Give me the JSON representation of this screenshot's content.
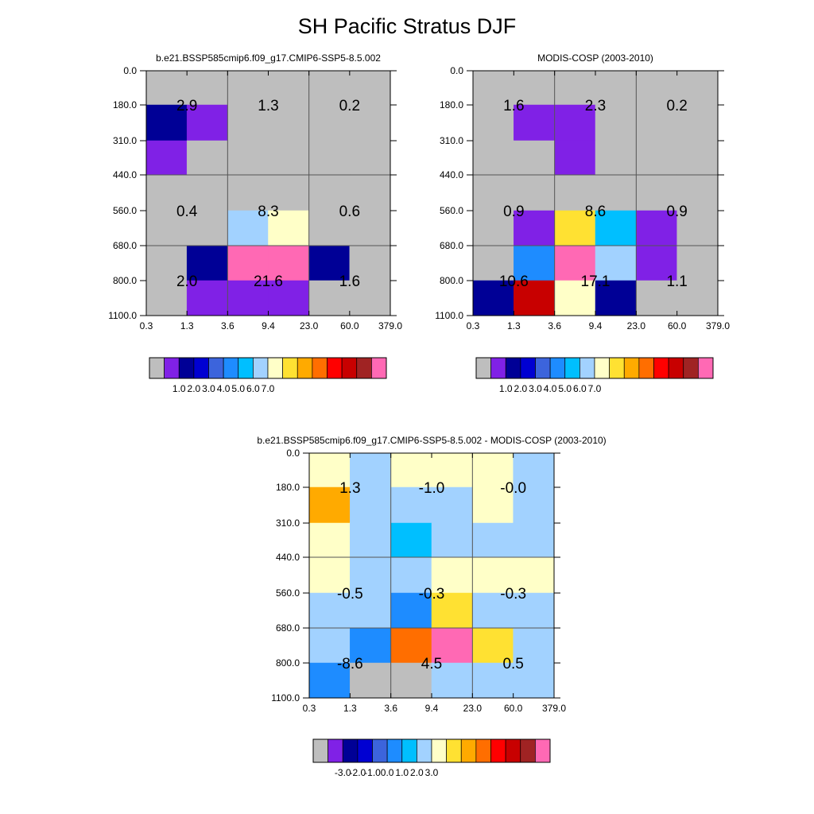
{
  "page": {
    "title": "SH Pacific Stratus DJF"
  },
  "colors": {
    "missing": "#bebebe",
    "grid": "#555555",
    "palette": [
      "#bebebe",
      "#8021e6",
      "#000096",
      "#0000d2",
      "#3c64dc",
      "#1e8cff",
      "#00bfff",
      "#a2d2ff",
      "#ffffc8",
      "#ffe132",
      "#ffaa00",
      "#ff6e00",
      "#ff0000",
      "#c80000",
      "#a02323",
      "#ff69b4"
    ],
    "diff_palette": [
      "#bebebe",
      "#8021e6",
      "#000096",
      "#0000d2",
      "#3c64dc",
      "#1e8cff",
      "#00bfff",
      "#a2d2ff",
      "#ffffc8",
      "#ffe132",
      "#ffaa00",
      "#ff6e00",
      "#ff0000",
      "#c80000",
      "#a02323",
      "#ff69b4"
    ]
  },
  "chart_data": [
    {
      "id": "model",
      "type": "heatmap",
      "title": "b.e21.BSSP585cmip6.f09_g17.CMIP6-SSP5-8.5.002",
      "xlabel": "",
      "ylabel": "",
      "x_ticks": [
        "0.3",
        "1.3",
        "3.6",
        "9.4",
        "23.0",
        "60.0",
        "379.0"
      ],
      "y_ticks": [
        "0.0",
        "180.0",
        "310.0",
        "440.0",
        "560.0",
        "680.0",
        "800.0",
        "1100.0"
      ],
      "cell_color_index": [
        [
          0,
          0,
          0,
          0,
          0,
          0
        ],
        [
          2,
          1,
          0,
          0,
          0,
          0
        ],
        [
          1,
          0,
          0,
          0,
          0,
          0
        ],
        [
          0,
          0,
          0,
          0,
          0,
          0
        ],
        [
          0,
          0,
          7,
          8,
          0,
          0
        ],
        [
          0,
          2,
          15,
          15,
          2,
          0
        ],
        [
          0,
          1,
          1,
          1,
          0,
          0
        ]
      ],
      "box_values": [
        {
          "label": "2.9",
          "col": 0,
          "row": 0
        },
        {
          "label": "1.3",
          "col": 1,
          "row": 0
        },
        {
          "label": "0.2",
          "col": 2,
          "row": 0
        },
        {
          "label": "0.4",
          "col": 0,
          "row": 1
        },
        {
          "label": "8.3",
          "col": 1,
          "row": 1
        },
        {
          "label": "0.6",
          "col": 2,
          "row": 1
        },
        {
          "label": "2.0",
          "col": 0,
          "row": 2
        },
        {
          "label": "21.6",
          "col": 1,
          "row": 2
        },
        {
          "label": "1.6",
          "col": 2,
          "row": 2
        }
      ],
      "colorbar_labels": [
        "1.0",
        "2.0",
        "3.0",
        "4.0",
        "5.0",
        "6.0",
        "7.0"
      ]
    },
    {
      "id": "obs",
      "type": "heatmap",
      "title": "MODIS-COSP (2003-2010)",
      "xlabel": "",
      "ylabel": "",
      "x_ticks": [
        "0.3",
        "1.3",
        "3.6",
        "9.4",
        "23.0",
        "60.0",
        "379.0"
      ],
      "y_ticks": [
        "0.0",
        "180.0",
        "310.0",
        "440.0",
        "560.0",
        "680.0",
        "800.0",
        "1100.0"
      ],
      "cell_color_index": [
        [
          0,
          0,
          0,
          0,
          0,
          0
        ],
        [
          0,
          1,
          1,
          0,
          0,
          0
        ],
        [
          0,
          0,
          1,
          0,
          0,
          0
        ],
        [
          0,
          0,
          0,
          0,
          0,
          0
        ],
        [
          0,
          1,
          9,
          6,
          1,
          0
        ],
        [
          0,
          5,
          15,
          7,
          1,
          0
        ],
        [
          2,
          13,
          8,
          2,
          0,
          0
        ]
      ],
      "box_values": [
        {
          "label": "1.6",
          "col": 0,
          "row": 0
        },
        {
          "label": "2.3",
          "col": 1,
          "row": 0
        },
        {
          "label": "0.2",
          "col": 2,
          "row": 0
        },
        {
          "label": "0.9",
          "col": 0,
          "row": 1
        },
        {
          "label": "8.6",
          "col": 1,
          "row": 1
        },
        {
          "label": "0.9",
          "col": 2,
          "row": 1
        },
        {
          "label": "10.6",
          "col": 0,
          "row": 2
        },
        {
          "label": "17.1",
          "col": 1,
          "row": 2
        },
        {
          "label": "1.1",
          "col": 2,
          "row": 2
        }
      ],
      "colorbar_labels": [
        "1.0",
        "2.0",
        "3.0",
        "4.0",
        "5.0",
        "6.0",
        "7.0"
      ]
    },
    {
      "id": "diff",
      "type": "heatmap",
      "title": "b.e21.BSSP585cmip6.f09_g17.CMIP6-SSP5-8.5.002 - MODIS-COSP (2003-2010)",
      "xlabel": "",
      "ylabel": "",
      "x_ticks": [
        "0.3",
        "1.3",
        "3.6",
        "9.4",
        "23.0",
        "60.0",
        "379.0"
      ],
      "y_ticks": [
        "0.0",
        "180.0",
        "310.0",
        "440.0",
        "560.0",
        "680.0",
        "800.0",
        "1100.0"
      ],
      "cell_color_index": [
        [
          8,
          7,
          8,
          8,
          8,
          7
        ],
        [
          10,
          7,
          7,
          7,
          8,
          7
        ],
        [
          8,
          7,
          6,
          7,
          7,
          7
        ],
        [
          8,
          7,
          7,
          8,
          8,
          8
        ],
        [
          7,
          7,
          5,
          9,
          7,
          7
        ],
        [
          7,
          5,
          11,
          15,
          9,
          7
        ],
        [
          5,
          0,
          0,
          7,
          7,
          7
        ]
      ],
      "box_values": [
        {
          "label": "1.3",
          "col": 0,
          "row": 0
        },
        {
          "label": "-1.0",
          "col": 1,
          "row": 0
        },
        {
          "label": "-0.0",
          "col": 2,
          "row": 0
        },
        {
          "label": "-0.5",
          "col": 0,
          "row": 1
        },
        {
          "label": "-0.3",
          "col": 1,
          "row": 1
        },
        {
          "label": "-0.3",
          "col": 2,
          "row": 1
        },
        {
          "label": "-8.6",
          "col": 0,
          "row": 2
        },
        {
          "label": "4.5",
          "col": 1,
          "row": 2
        },
        {
          "label": "0.5",
          "col": 2,
          "row": 2
        }
      ],
      "colorbar_labels": [
        "-3.0",
        "-2.0",
        "-1.0",
        "0.0",
        "1.0",
        "2.0",
        "3.0"
      ]
    }
  ]
}
